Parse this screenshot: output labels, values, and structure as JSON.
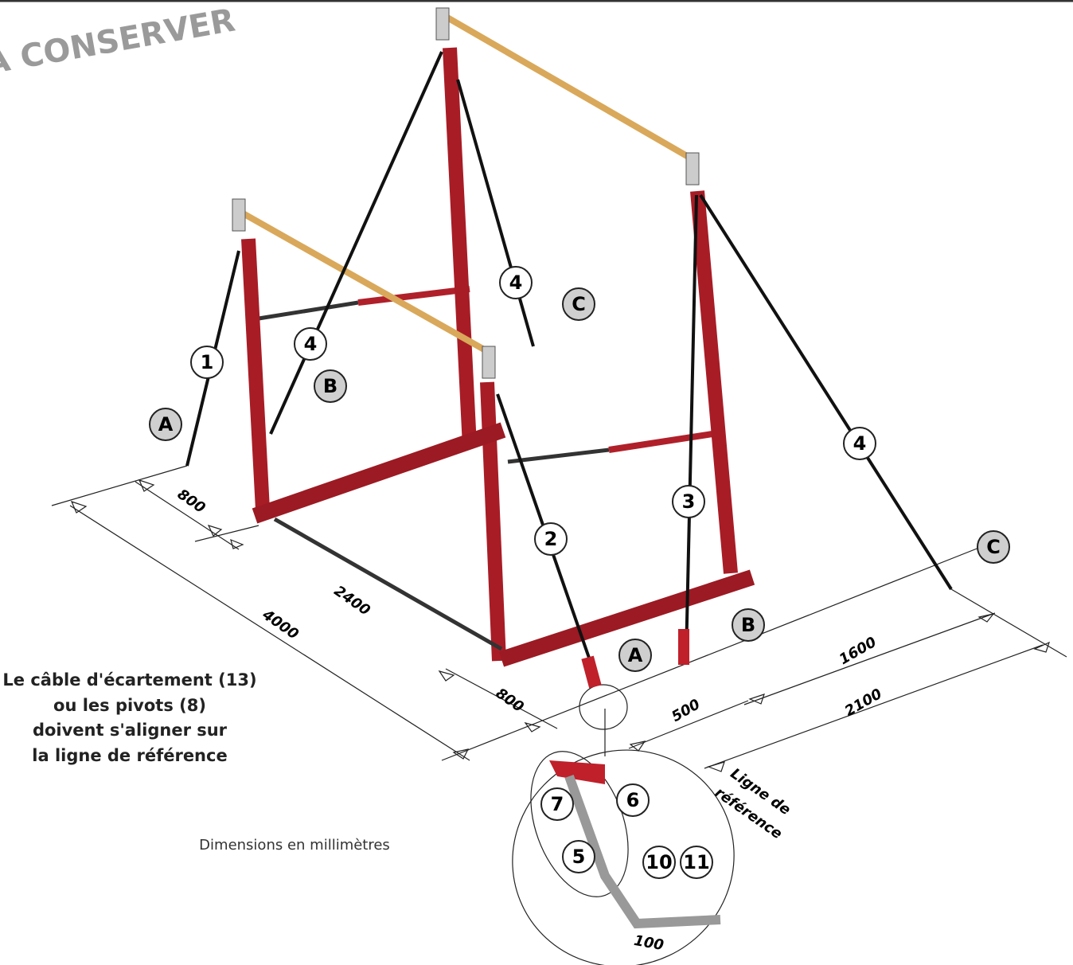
{
  "stamp": "A CONSERVER",
  "callouts": [
    "1",
    "4",
    "4",
    "4",
    "2",
    "3",
    "A",
    "B",
    "C",
    "C",
    "A",
    "B",
    "7",
    "6",
    "5",
    "10",
    "11"
  ],
  "dimensions": [
    "800",
    "2400",
    "4000",
    "800",
    "500",
    "1600",
    "2100",
    "100"
  ],
  "note": {
    "lines": [
      "Le câble d'écartement (13)",
      "ou les pivots (8)",
      "doivent s'aligner sur",
      "la ligne de référence"
    ]
  },
  "units_note": "Dimensions en millimètres",
  "reference_line": {
    "lines": [
      "Ligne de",
      "référence"
    ]
  }
}
